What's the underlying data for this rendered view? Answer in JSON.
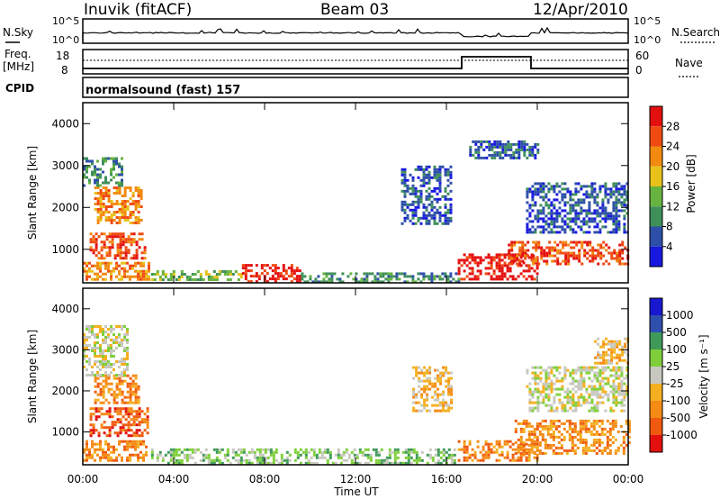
{
  "header": {
    "station": "Inuvik (fitACF)",
    "beam": "Beam 03",
    "date": "12/Apr/2010"
  },
  "noise_panel": {
    "left_label": "N.Sky",
    "left_ticks": [
      "10^5",
      "10^0"
    ],
    "right_ticks": [
      "10^5",
      "10^0"
    ],
    "right_label": "N.Search"
  },
  "freq_panel": {
    "left_label_1": "Freq.",
    "left_label_2": "[MHz]",
    "left_ticks": [
      "18",
      "8"
    ],
    "right_ticks": [
      "60",
      "0"
    ],
    "right_label": "Nave"
  },
  "cpid_panel": {
    "label": "CPID",
    "program": "normalsound (fast) 157"
  },
  "time_axis": {
    "label": "Time UT",
    "ticks": [
      "00:00",
      "04:00",
      "08:00",
      "12:00",
      "16:00",
      "20:00",
      "00:00"
    ]
  },
  "colors": {
    "power": [
      "#1818e0",
      "#2d4fa8",
      "#3f8f5a",
      "#66b33f",
      "#e8c21a",
      "#f28a10",
      "#ef4a12",
      "#e41010"
    ],
    "velocity": [
      "#e41010",
      "#ef5a10",
      "#f58a15",
      "#f4b020",
      "#c8c8c0",
      "#7fcf3a",
      "#3f9a5a",
      "#2f4fae",
      "#1818d0"
    ]
  },
  "chart_data": [
    {
      "type": "heatmap",
      "name_id": "power",
      "ylabel": "Slant Range [km]",
      "xlabel": "Time UT",
      "xlim_hours": [
        0,
        24
      ],
      "ylim": [
        200,
        4500
      ],
      "yticks": [
        "1000",
        "2000",
        "3000",
        "4000"
      ],
      "colorbar": {
        "label": "Power [dB]",
        "ticks": [
          "4",
          "8",
          "12",
          "16",
          "20",
          "24",
          "28"
        ]
      },
      "patches": [
        {
          "t0": 0.0,
          "t1": 2.9,
          "r0": 300,
          "r1": 700,
          "level": 5
        },
        {
          "t0": 0.3,
          "t1": 2.7,
          "r0": 800,
          "r1": 1400,
          "level": 6
        },
        {
          "t0": 0.5,
          "t1": 2.6,
          "r0": 1600,
          "r1": 2500,
          "level": 5
        },
        {
          "t0": 0.0,
          "t1": 1.7,
          "r0": 2500,
          "r1": 3200,
          "level": 2
        },
        {
          "t0": 3.0,
          "t1": 7.0,
          "r0": 250,
          "r1": 500,
          "level": 3
        },
        {
          "t0": 7.0,
          "t1": 9.6,
          "r0": 250,
          "r1": 650,
          "level": 7
        },
        {
          "t0": 9.6,
          "t1": 16.5,
          "r0": 250,
          "r1": 450,
          "level": 2
        },
        {
          "t0": 14.0,
          "t1": 16.2,
          "r0": 1600,
          "r1": 3000,
          "level": 1
        },
        {
          "t0": 16.5,
          "t1": 20.0,
          "r0": 300,
          "r1": 900,
          "level": 7
        },
        {
          "t0": 18.7,
          "t1": 24.0,
          "r0": 650,
          "r1": 1200,
          "level": 6
        },
        {
          "t0": 19.5,
          "t1": 24.0,
          "r0": 1400,
          "r1": 2600,
          "level": 1
        },
        {
          "t0": 17.0,
          "t1": 20.0,
          "r0": 3200,
          "r1": 3600,
          "level": 1
        }
      ]
    },
    {
      "type": "heatmap",
      "name_id": "velocity",
      "ylabel": "Slant Range [km]",
      "xlabel": "Time UT",
      "xlim_hours": [
        0,
        24
      ],
      "ylim": [
        200,
        4500
      ],
      "yticks": [
        "1000",
        "2000",
        "3000",
        "4000"
      ],
      "colorbar": {
        "label": "Velocity [m s⁻¹]",
        "ticks": [
          "1000",
          "500",
          "100",
          "25",
          "-25",
          "-100",
          "-500",
          "-1000"
        ]
      },
      "patches": [
        {
          "t0": 0.0,
          "t1": 2.8,
          "r0": 300,
          "r1": 800,
          "level": 2
        },
        {
          "t0": 0.3,
          "t1": 2.9,
          "r0": 900,
          "r1": 1600,
          "level": 1
        },
        {
          "t0": 0.5,
          "t1": 2.5,
          "r0": 1700,
          "r1": 2400,
          "level": 2
        },
        {
          "t0": 0.0,
          "t1": 2.0,
          "r0": 2400,
          "r1": 3600,
          "level": 4
        },
        {
          "t0": 3.0,
          "t1": 16.5,
          "r0": 250,
          "r1": 600,
          "level": 5
        },
        {
          "t0": 14.5,
          "t1": 16.2,
          "r0": 1500,
          "r1": 2600,
          "level": 3
        },
        {
          "t0": 16.5,
          "t1": 20.0,
          "r0": 300,
          "r1": 800,
          "level": 2
        },
        {
          "t0": 19.0,
          "t1": 24.0,
          "r0": 500,
          "r1": 1300,
          "level": 2
        },
        {
          "t0": 19.5,
          "t1": 24.0,
          "r0": 1500,
          "r1": 2600,
          "level": 4
        },
        {
          "t0": 22.5,
          "t1": 24.0,
          "r0": 2700,
          "r1": 3300,
          "level": 3
        }
      ]
    }
  ]
}
